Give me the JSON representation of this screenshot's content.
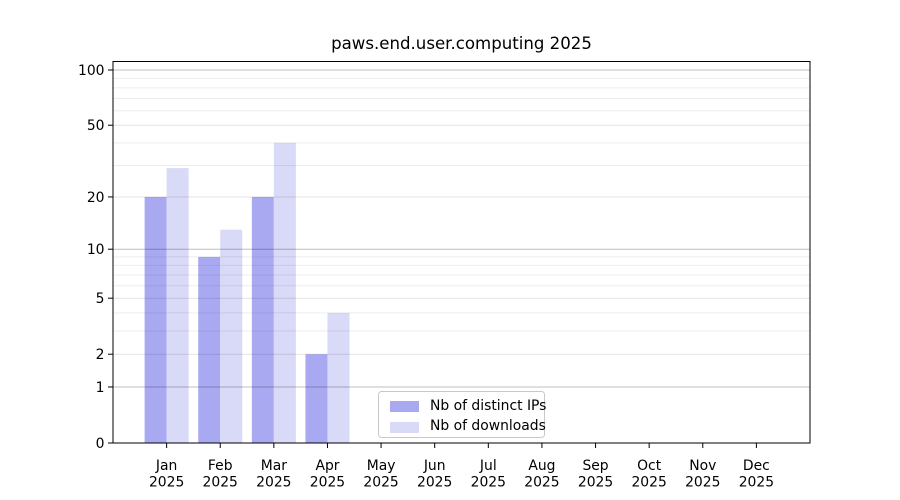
{
  "chart_data": {
    "type": "bar",
    "title": "paws.end.user.computing 2025",
    "categories": [
      "Jan",
      "Feb",
      "Mar",
      "Apr",
      "May",
      "Jun",
      "Jul",
      "Aug",
      "Sep",
      "Oct",
      "Nov",
      "Dec"
    ],
    "x_tick_year": "2025",
    "series": [
      {
        "name": "Nb of distinct IPs",
        "color": "#a9a9f2",
        "values": [
          20,
          9,
          20,
          2,
          0,
          0,
          0,
          0,
          0,
          0,
          0,
          0
        ]
      },
      {
        "name": "Nb of downloads",
        "color": "#d9d9f8",
        "values": [
          29,
          13,
          40,
          4,
          0,
          0,
          0,
          0,
          0,
          0,
          0,
          0
        ]
      }
    ],
    "yscale": "log10(1+value)",
    "ylim": [
      0,
      110
    ],
    "yticks": [
      0,
      1,
      2,
      5,
      10,
      20,
      50,
      100
    ],
    "minor_gridlines": [
      3,
      4,
      6,
      7,
      8,
      9,
      30,
      40,
      60,
      70,
      80,
      90
    ],
    "emphasized_gridlines": [
      1,
      10,
      100
    ],
    "grid": true,
    "legend_position": "lower center-left inside plot",
    "colors": {
      "spine": "#000000",
      "tick_label": "#000000",
      "legend_border": "#c8c8c8",
      "background": "#ffffff"
    }
  }
}
